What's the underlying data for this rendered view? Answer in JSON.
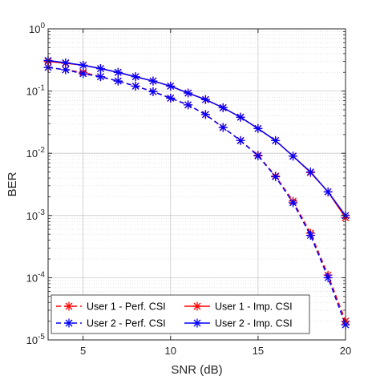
{
  "chart_data": {
    "type": "line",
    "title": "",
    "xlabel": "SNR (dB)",
    "ylabel": "BER",
    "xlim": [
      3,
      20
    ],
    "ylim": [
      1e-05,
      1
    ],
    "yscale": "log",
    "grid": true,
    "legend_position": "bottom-left",
    "x_ticks": [
      "5",
      "10",
      "15",
      "20"
    ],
    "x_tick_values": [
      5,
      10,
      15,
      20
    ],
    "y_ticks": [
      {
        "base": "10",
        "exp": "0",
        "value": 1
      },
      {
        "base": "10",
        "exp": "-1",
        "value": 0.1
      },
      {
        "base": "10",
        "exp": "-2",
        "value": 0.01
      },
      {
        "base": "10",
        "exp": "-3",
        "value": 0.001
      },
      {
        "base": "10",
        "exp": "-4",
        "value": 0.0001
      },
      {
        "base": "10",
        "exp": "-5",
        "value": 1e-05
      }
    ],
    "x": [
      3,
      4,
      5,
      6,
      7,
      8,
      9,
      10,
      11,
      12,
      13,
      14,
      15,
      16,
      17,
      18,
      19,
      20
    ],
    "series": [
      {
        "name": "User 1 - Perf. CSI",
        "color": "#ff0000",
        "dash": true,
        "values": [
          0.24,
          0.22,
          0.2,
          0.17,
          0.145,
          0.12,
          0.098,
          0.077,
          0.06,
          0.042,
          0.026,
          0.016,
          0.0093,
          0.0043,
          0.0017,
          0.00052,
          0.00011,
          2e-05
        ]
      },
      {
        "name": "User 2 - Perf. CSI",
        "color": "#0000ff",
        "dash": true,
        "values": [
          0.24,
          0.22,
          0.19,
          0.17,
          0.145,
          0.12,
          0.098,
          0.077,
          0.06,
          0.042,
          0.026,
          0.016,
          0.0091,
          0.0042,
          0.0016,
          0.00048,
          0.0001,
          1.75e-05
        ]
      },
      {
        "name": "User 1 - Imp. CSI",
        "color": "#ff0000",
        "dash": false,
        "values": [
          0.3,
          0.28,
          0.26,
          0.23,
          0.2,
          0.17,
          0.145,
          0.12,
          0.093,
          0.073,
          0.054,
          0.038,
          0.025,
          0.016,
          0.009,
          0.0049,
          0.0024,
          0.00092
        ]
      },
      {
        "name": "User 2 - Imp. CSI",
        "color": "#0000ff",
        "dash": false,
        "values": [
          0.31,
          0.285,
          0.26,
          0.23,
          0.2,
          0.17,
          0.145,
          0.12,
          0.093,
          0.073,
          0.054,
          0.038,
          0.025,
          0.016,
          0.009,
          0.005,
          0.0024,
          0.001
        ]
      }
    ],
    "legend": [
      {
        "label": "User 1 - Perf. CSI",
        "series": 0
      },
      {
        "label": "User 1 - Imp. CSI",
        "series": 2
      },
      {
        "label": "User 2 - Perf. CSI",
        "series": 1
      },
      {
        "label": "User 2 - Imp. CSI",
        "series": 3
      }
    ]
  }
}
